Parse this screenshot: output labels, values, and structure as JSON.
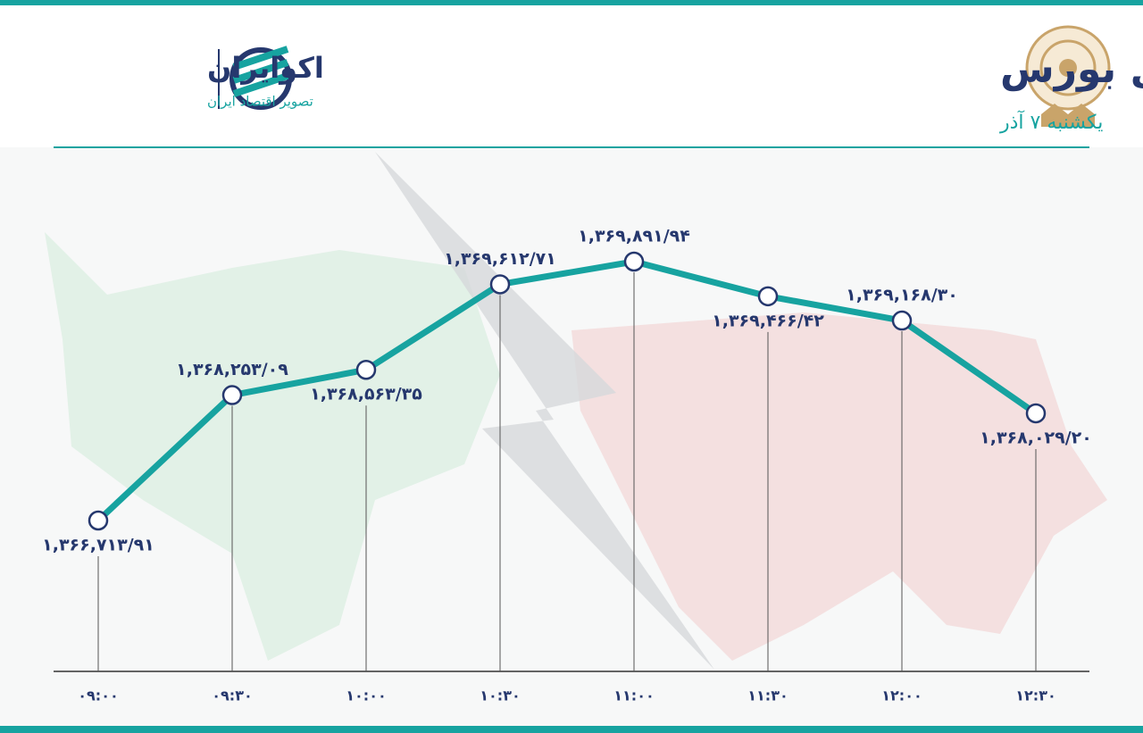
{
  "chart_data": {
    "type": "line",
    "title": "روند شاخص کل بورس",
    "subtitle": "یکشنبه ۷ آذر",
    "brand": "اکوایران",
    "brand_tagline": "تصویر اقتصاد ایران",
    "categories": [
      "۰۹:۰۰",
      "۰۹:۳۰",
      "۱۰:۰۰",
      "۱۰:۳۰",
      "۱۱:۰۰",
      "۱۱:۳۰",
      "۱۲:۰۰",
      "۱۲:۳۰"
    ],
    "series": [
      {
        "color": "#17a3a0",
        "values": [
          1366713.91,
          1368253.09,
          1368563.35,
          1369612.71,
          1369891.94,
          1369466.42,
          1369168.3,
          1368029.2
        ],
        "value_labels": [
          "۱,۳۶۶,۷۱۳/۹۱",
          "۱,۳۶۸,۲۵۳/۰۹",
          "۱,۳۶۸,۵۶۳/۳۵",
          "۱,۳۶۹,۶۱۲/۷۱",
          "۱,۳۶۹,۸۹۱/۹۴",
          "۱,۳۶۹,۴۶۶/۴۲",
          "۱,۳۶۹,۱۶۸/۳۰",
          "۱,۳۶۸,۰۲۹/۲۰"
        ]
      }
    ]
  }
}
